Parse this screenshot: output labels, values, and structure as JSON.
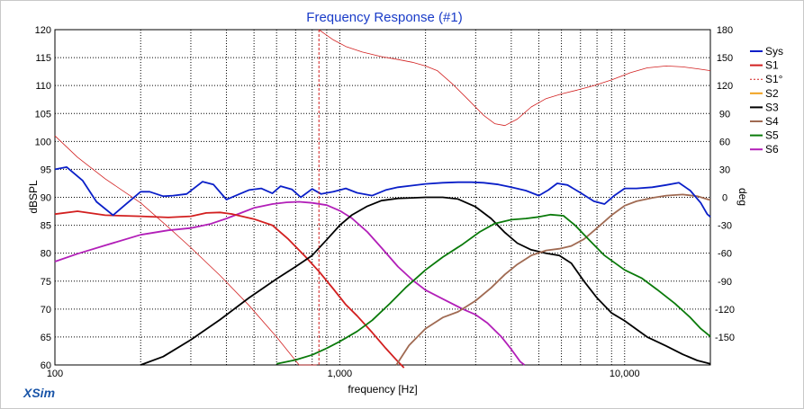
{
  "chart_data": {
    "type": "line",
    "title": "Frequency Response (#1)",
    "xlabel": "frequency [Hz]",
    "ylabel": "dBSPL",
    "y2label": "deg",
    "x_scale": "log",
    "xlim": [
      100,
      20000
    ],
    "ylim": [
      60,
      120
    ],
    "y2lim": [
      -180,
      180
    ],
    "x_tick_labels": [
      {
        "value": 100,
        "label": "100"
      },
      {
        "value": 1000,
        "label": "1,000"
      },
      {
        "value": 10000,
        "label": "10,000"
      }
    ],
    "y_ticks": [
      60,
      65,
      70,
      75,
      80,
      85,
      90,
      95,
      100,
      105,
      110,
      115,
      120
    ],
    "y2_ticks": [
      -150,
      -120,
      -90,
      -60,
      -30,
      0,
      30,
      60,
      90,
      120,
      150,
      180
    ],
    "grid": true,
    "legend_position": "right",
    "series": [
      {
        "name": "Sys",
        "color": "#0a1fc8",
        "axis": "left",
        "style": "solid",
        "points": [
          [
            100,
            95
          ],
          [
            110,
            95.4
          ],
          [
            125,
            93
          ],
          [
            140,
            89.2
          ],
          [
            160,
            86.8
          ],
          [
            175,
            88.5
          ],
          [
            200,
            91
          ],
          [
            215,
            91
          ],
          [
            240,
            90.2
          ],
          [
            260,
            90.3
          ],
          [
            290,
            90.6
          ],
          [
            330,
            92.8
          ],
          [
            360,
            92.3
          ],
          [
            400,
            89.6
          ],
          [
            440,
            90.5
          ],
          [
            480,
            91.3
          ],
          [
            530,
            91.6
          ],
          [
            580,
            90.7
          ],
          [
            620,
            92
          ],
          [
            680,
            91.4
          ],
          [
            730,
            90
          ],
          [
            800,
            91.5
          ],
          [
            860,
            90.6
          ],
          [
            950,
            91
          ],
          [
            1050,
            91.6
          ],
          [
            1150,
            90.8
          ],
          [
            1300,
            90.3
          ],
          [
            1450,
            91.3
          ],
          [
            1600,
            91.8
          ],
          [
            1800,
            92.1
          ],
          [
            2000,
            92.4
          ],
          [
            2300,
            92.6
          ],
          [
            2600,
            92.7
          ],
          [
            2900,
            92.7
          ],
          [
            3200,
            92.6
          ],
          [
            3600,
            92.3
          ],
          [
            4000,
            91.8
          ],
          [
            4500,
            91.2
          ],
          [
            5000,
            90.3
          ],
          [
            5400,
            91.3
          ],
          [
            5800,
            92.5
          ],
          [
            6300,
            92.2
          ],
          [
            7000,
            90.8
          ],
          [
            7800,
            89.3
          ],
          [
            8500,
            88.8
          ],
          [
            9200,
            90.3
          ],
          [
            10000,
            91.6
          ],
          [
            11000,
            91.6
          ],
          [
            12500,
            91.8
          ],
          [
            14000,
            92.2
          ],
          [
            15500,
            92.6
          ],
          [
            17000,
            91.2
          ],
          [
            18500,
            89
          ],
          [
            19500,
            87
          ],
          [
            20000,
            86.5
          ]
        ]
      },
      {
        "name": "S1",
        "color": "#d21f1f",
        "axis": "left",
        "style": "solid",
        "points": [
          [
            100,
            87
          ],
          [
            120,
            87.5
          ],
          [
            150,
            86.8
          ],
          [
            200,
            86.6
          ],
          [
            250,
            86.4
          ],
          [
            300,
            86.6
          ],
          [
            340,
            87.2
          ],
          [
            380,
            87.3
          ],
          [
            420,
            87
          ],
          [
            500,
            86.1
          ],
          [
            580,
            85
          ],
          [
            660,
            82.5
          ],
          [
            760,
            79.3
          ],
          [
            850,
            76.6
          ],
          [
            950,
            73.6
          ],
          [
            1050,
            70.8
          ],
          [
            1150,
            68.8
          ],
          [
            1300,
            65.8
          ],
          [
            1450,
            63
          ],
          [
            1600,
            60.6
          ],
          [
            1680,
            59.5
          ]
        ]
      },
      {
        "name": "S1°",
        "color": "#d21f1f",
        "axis": "right",
        "style": "dashed",
        "points": [
          [
            100,
            66
          ],
          [
            120,
            43
          ],
          [
            150,
            20
          ],
          [
            200,
            -6
          ],
          [
            250,
            -32
          ],
          [
            300,
            -54
          ],
          [
            380,
            -84
          ],
          [
            480,
            -116
          ],
          [
            600,
            -150
          ],
          [
            720,
            -180
          ],
          [
            810,
            -180
          ],
          [
            830,
            -180
          ],
          [
            845,
            180
          ],
          [
            880,
            176
          ],
          [
            950,
            169
          ],
          [
            1050,
            162
          ],
          [
            1200,
            156
          ],
          [
            1400,
            151
          ],
          [
            1600,
            148
          ],
          [
            1800,
            145
          ],
          [
            2000,
            141
          ],
          [
            2200,
            136
          ],
          [
            2500,
            121
          ],
          [
            2800,
            106
          ],
          [
            3200,
            88
          ],
          [
            3500,
            79
          ],
          [
            3800,
            77
          ],
          [
            4200,
            84
          ],
          [
            4700,
            97
          ],
          [
            5300,
            106
          ],
          [
            6000,
            111
          ],
          [
            6800,
            115
          ],
          [
            7800,
            120
          ],
          [
            9000,
            126
          ],
          [
            10500,
            134
          ],
          [
            12000,
            139
          ],
          [
            14000,
            141
          ],
          [
            16000,
            140
          ],
          [
            18000,
            138
          ],
          [
            20000,
            136
          ]
        ]
      },
      {
        "name": "S2",
        "color": "#f0a21e",
        "axis": "left",
        "style": "solid",
        "points": []
      },
      {
        "name": "S3",
        "color": "#000000",
        "axis": "left",
        "style": "solid",
        "points": [
          [
            200,
            60
          ],
          [
            240,
            61.5
          ],
          [
            300,
            64.5
          ],
          [
            380,
            68.1
          ],
          [
            480,
            72
          ],
          [
            600,
            75.4
          ],
          [
            700,
            77.6
          ],
          [
            800,
            79.6
          ],
          [
            900,
            82.4
          ],
          [
            1000,
            85
          ],
          [
            1100,
            86.8
          ],
          [
            1250,
            88.4
          ],
          [
            1400,
            89.4
          ],
          [
            1600,
            89.8
          ],
          [
            1800,
            89.9
          ],
          [
            2000,
            90
          ],
          [
            2300,
            90
          ],
          [
            2600,
            89.7
          ],
          [
            3000,
            88.3
          ],
          [
            3400,
            86.2
          ],
          [
            3800,
            83.7
          ],
          [
            4200,
            81.8
          ],
          [
            4700,
            80.6
          ],
          [
            5300,
            80
          ],
          [
            5900,
            79.6
          ],
          [
            6500,
            78.2
          ],
          [
            7200,
            75
          ],
          [
            8000,
            72
          ],
          [
            9000,
            69.3
          ],
          [
            10000,
            67.9
          ],
          [
            12000,
            65
          ],
          [
            14000,
            63.4
          ],
          [
            16000,
            61.9
          ],
          [
            18000,
            60.8
          ],
          [
            20000,
            60.2
          ]
        ]
      },
      {
        "name": "S4",
        "color": "#a06a52",
        "axis": "left",
        "style": "solid",
        "points": [
          [
            1580,
            60
          ],
          [
            1750,
            63.5
          ],
          [
            2000,
            66.5
          ],
          [
            2300,
            68.5
          ],
          [
            2600,
            69.5
          ],
          [
            3000,
            71.5
          ],
          [
            3400,
            73.8
          ],
          [
            3800,
            76.2
          ],
          [
            4200,
            78
          ],
          [
            4700,
            79.6
          ],
          [
            5300,
            80.5
          ],
          [
            5900,
            80.8
          ],
          [
            6500,
            81.3
          ],
          [
            7200,
            82.5
          ],
          [
            8000,
            84.5
          ],
          [
            9000,
            86.8
          ],
          [
            10000,
            88.5
          ],
          [
            11000,
            89.3
          ],
          [
            12500,
            89.9
          ],
          [
            14000,
            90.3
          ],
          [
            16000,
            90.5
          ],
          [
            18000,
            90.2
          ],
          [
            20000,
            89.5
          ]
        ]
      },
      {
        "name": "S5",
        "color": "#0a7a0a",
        "axis": "left",
        "style": "solid",
        "points": [
          [
            600,
            60.2
          ],
          [
            700,
            60.9
          ],
          [
            800,
            61.8
          ],
          [
            900,
            63
          ],
          [
            1000,
            64.2
          ],
          [
            1150,
            66
          ],
          [
            1300,
            68
          ],
          [
            1500,
            71
          ],
          [
            1700,
            73.8
          ],
          [
            2000,
            77
          ],
          [
            2300,
            79.3
          ],
          [
            2700,
            81.6
          ],
          [
            3100,
            83.8
          ],
          [
            3500,
            85.3
          ],
          [
            4000,
            86
          ],
          [
            4500,
            86.2
          ],
          [
            5000,
            86.5
          ],
          [
            5500,
            86.9
          ],
          [
            6100,
            86.7
          ],
          [
            6700,
            85
          ],
          [
            7500,
            82.4
          ],
          [
            8500,
            79.6
          ],
          [
            10000,
            77
          ],
          [
            11500,
            75.5
          ],
          [
            13000,
            73.5
          ],
          [
            15000,
            71
          ],
          [
            17000,
            68.5
          ],
          [
            18500,
            66.5
          ],
          [
            20000,
            65.1
          ]
        ]
      },
      {
        "name": "S6",
        "color": "#b21fb8",
        "axis": "left",
        "style": "solid",
        "points": [
          [
            100,
            78.5
          ],
          [
            120,
            79.9
          ],
          [
            150,
            81.4
          ],
          [
            200,
            83.3
          ],
          [
            250,
            84.1
          ],
          [
            300,
            84.5
          ],
          [
            350,
            85.2
          ],
          [
            400,
            86.2
          ],
          [
            450,
            87.2
          ],
          [
            500,
            88.1
          ],
          [
            580,
            88.8
          ],
          [
            650,
            89.1
          ],
          [
            720,
            89.2
          ],
          [
            800,
            89
          ],
          [
            900,
            88.6
          ],
          [
            1000,
            87.6
          ],
          [
            1100,
            86.3
          ],
          [
            1250,
            83.8
          ],
          [
            1400,
            81
          ],
          [
            1600,
            77.6
          ],
          [
            1800,
            75.2
          ],
          [
            2000,
            73.4
          ],
          [
            2300,
            71.8
          ],
          [
            2700,
            70
          ],
          [
            3000,
            69
          ],
          [
            3300,
            67.5
          ],
          [
            3700,
            65
          ],
          [
            4000,
            62.8
          ],
          [
            4300,
            60.6
          ],
          [
            4450,
            60
          ]
        ]
      }
    ]
  },
  "brand": "XSim"
}
